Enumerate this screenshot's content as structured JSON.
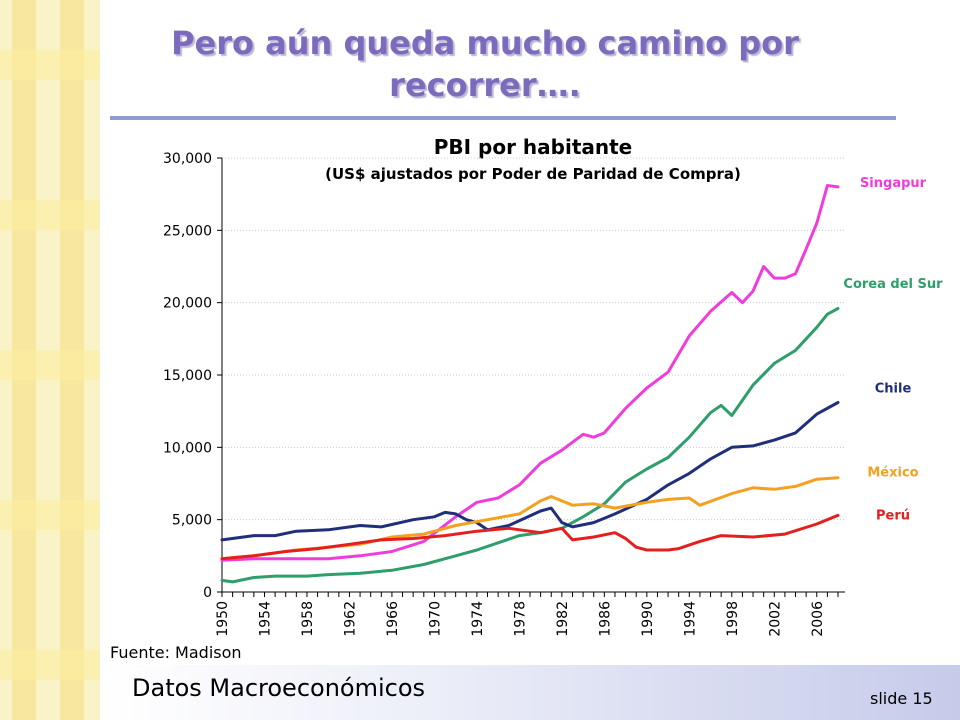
{
  "slide": {
    "title": "Pero aún queda mucho camino por recorrer….",
    "source": "Fuente: Madison",
    "footer": "Datos Macroeconómicos",
    "slide_number": "slide 15"
  },
  "colors": {
    "title": "#7c6bbd",
    "rule": "#8e9bd0",
    "band_light": "#fbf3c8",
    "band_dark": "#f8e394"
  },
  "chart_data": {
    "type": "line",
    "title": "PBI por habitante",
    "subtitle": "(US$ ajustados por Poder de Paridad de Compra)",
    "xlim": [
      1950,
      2008
    ],
    "ylim": [
      0,
      30000
    ],
    "yticks": [
      0,
      5000,
      10000,
      15000,
      20000,
      25000,
      30000
    ],
    "ytick_labels": [
      "0",
      "5,000",
      "10,000",
      "15,000",
      "20,000",
      "25,000",
      "30,000"
    ],
    "xticks": [
      1950,
      1954,
      1958,
      1962,
      1966,
      1970,
      1974,
      1978,
      1982,
      1986,
      1990,
      1994,
      1998,
      2002,
      2006
    ],
    "grid": "horizontal",
    "legend": "right, inline labels",
    "series": [
      {
        "name": "Singapur",
        "color": "#f03cdc",
        "label_y": 28000,
        "x": [
          1950,
          1953,
          1957,
          1960,
          1963,
          1966,
          1969,
          1972,
          1974,
          1976,
          1978,
          1980,
          1982,
          1984,
          1985,
          1986,
          1988,
          1990,
          1992,
          1994,
          1996,
          1998,
          1999,
          2000,
          2001,
          2002,
          2003,
          2004,
          2005,
          2006,
          2007,
          2008
        ],
        "values": [
          2200,
          2300,
          2300,
          2300,
          2500,
          2800,
          3500,
          5200,
          6200,
          6500,
          7400,
          8900,
          9800,
          10900,
          10700,
          11000,
          12700,
          14100,
          15200,
          17700,
          19400,
          20700,
          20000,
          20800,
          22500,
          21700,
          21700,
          22000,
          23700,
          25500,
          28100,
          28000
        ]
      },
      {
        "name": "Corea del Sur",
        "color": "#2e9e6a",
        "label_y": 21000,
        "x": [
          1950,
          1951,
          1953,
          1955,
          1958,
          1960,
          1963,
          1966,
          1969,
          1972,
          1974,
          1976,
          1978,
          1980,
          1982,
          1984,
          1986,
          1988,
          1990,
          1992,
          1994,
          1996,
          1997,
          1998,
          2000,
          2002,
          2004,
          2006,
          2007,
          2008
        ],
        "values": [
          800,
          700,
          1000,
          1100,
          1100,
          1200,
          1300,
          1500,
          1900,
          2500,
          2900,
          3400,
          3900,
          4100,
          4400,
          5200,
          6100,
          7600,
          8500,
          9300,
          10700,
          12400,
          12900,
          12200,
          14300,
          15800,
          16700,
          18300,
          19200,
          19600
        ]
      },
      {
        "name": "Chile",
        "color": "#1f2f7a",
        "label_y": 13800,
        "x": [
          1950,
          1953,
          1955,
          1957,
          1960,
          1963,
          1965,
          1968,
          1970,
          1971,
          1972,
          1973,
          1974,
          1975,
          1977,
          1980,
          1981,
          1982,
          1983,
          1985,
          1987,
          1990,
          1992,
          1994,
          1996,
          1998,
          2000,
          2002,
          2004,
          2006,
          2008
        ],
        "values": [
          3600,
          3900,
          3900,
          4200,
          4300,
          4600,
          4500,
          5000,
          5200,
          5500,
          5400,
          5000,
          4800,
          4300,
          4600,
          5600,
          5800,
          4800,
          4500,
          4800,
          5400,
          6400,
          7400,
          8200,
          9200,
          10000,
          10100,
          10500,
          11000,
          12300,
          13100
        ]
      },
      {
        "name": "México",
        "color": "#f4a020",
        "label_y": 8000,
        "x": [
          1950,
          1953,
          1957,
          1960,
          1963,
          1966,
          1969,
          1972,
          1975,
          1978,
          1980,
          1981,
          1982,
          1983,
          1985,
          1987,
          1990,
          1992,
          1994,
          1995,
          1998,
          2000,
          2002,
          2004,
          2006,
          2008
        ],
        "values": [
          2300,
          2500,
          2900,
          3100,
          3300,
          3800,
          4000,
          4600,
          5000,
          5400,
          6300,
          6600,
          6300,
          6000,
          6100,
          5800,
          6200,
          6400,
          6500,
          6000,
          6800,
          7200,
          7100,
          7300,
          7800,
          7900
        ]
      },
      {
        "name": "Perú",
        "color": "#e4201e",
        "label_y": 5000,
        "x": [
          1950,
          1953,
          1956,
          1959,
          1962,
          1965,
          1968,
          1971,
          1974,
          1977,
          1980,
          1982,
          1983,
          1985,
          1987,
          1988,
          1989,
          1990,
          1992,
          1993,
          1995,
          1997,
          2000,
          2003,
          2006,
          2008
        ],
        "values": [
          2300,
          2500,
          2800,
          3000,
          3300,
          3600,
          3700,
          3900,
          4200,
          4400,
          4100,
          4400,
          3600,
          3800,
          4100,
          3700,
          3100,
          2900,
          2900,
          3000,
          3500,
          3900,
          3800,
          4000,
          4700,
          5300
        ]
      }
    ]
  }
}
